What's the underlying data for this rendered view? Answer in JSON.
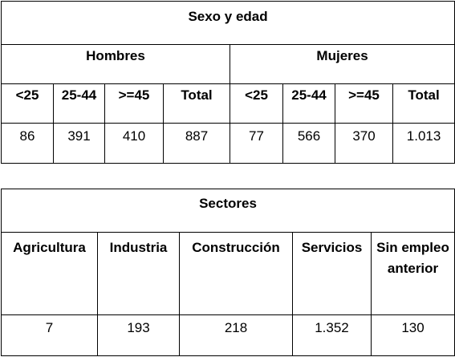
{
  "age_table": {
    "title": "Sexo y edad",
    "groups": [
      {
        "label": "Hombres",
        "columns": [
          "<25",
          "25-44",
          ">=45",
          "Total"
        ],
        "values": [
          "86",
          "391",
          "410",
          "887"
        ]
      },
      {
        "label": "Mujeres",
        "columns": [
          "<25",
          "25-44",
          ">=45",
          "Total"
        ],
        "values": [
          "77",
          "566",
          "370",
          "1.013"
        ]
      }
    ]
  },
  "sectors_table": {
    "title": "Sectores",
    "columns": [
      "Agricultura",
      "Industria",
      "Construcción",
      "Servicios",
      "Sin empleo anterior"
    ],
    "values": [
      "7",
      "193",
      "218",
      "1.352",
      "130"
    ]
  }
}
